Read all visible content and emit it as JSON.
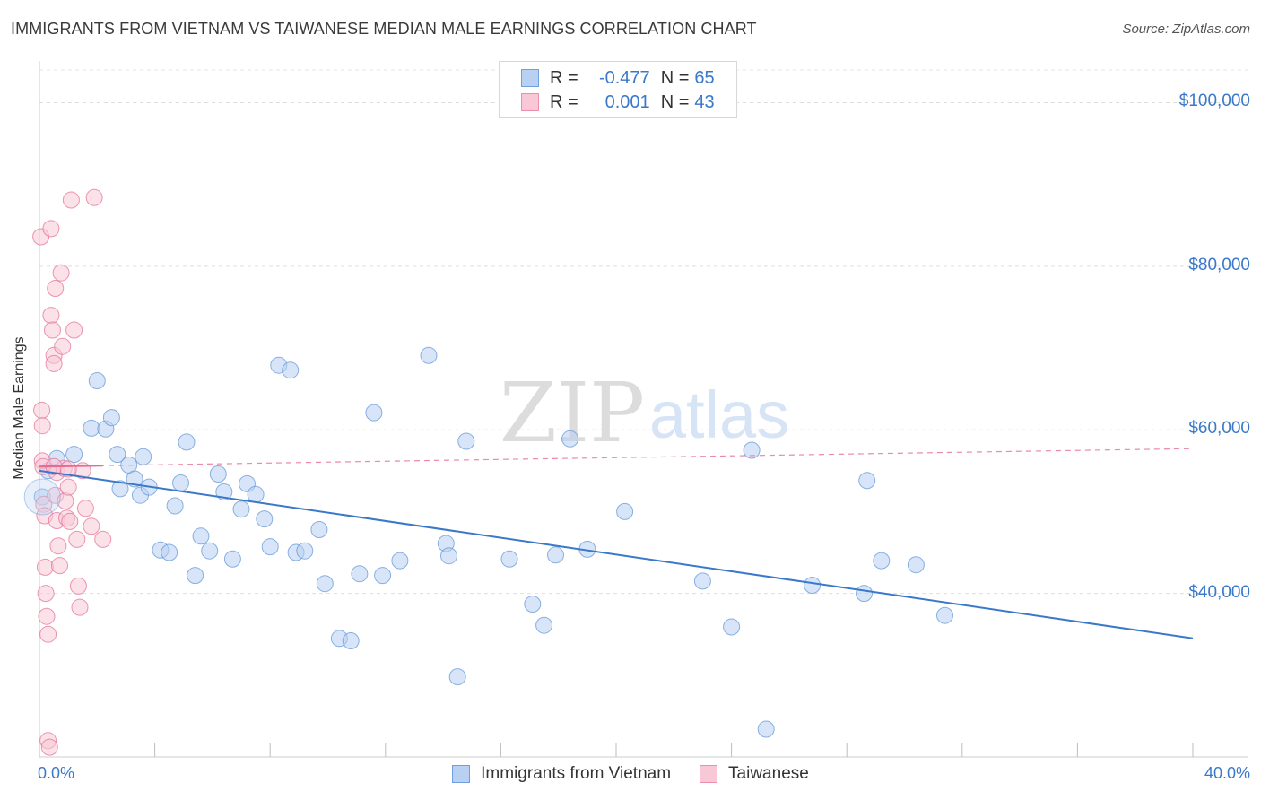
{
  "title": "IMMIGRANTS FROM VIETNAM VS TAIWANESE MEDIAN MALE EARNINGS CORRELATION CHART",
  "source": "Source: ZipAtlas.com",
  "watermark": {
    "zip": "ZIP",
    "atlas": "atlas"
  },
  "legend": {
    "rows": [
      {
        "r_label": "R =",
        "r_value": "-0.477",
        "n_label": "N =",
        "n_value": "65",
        "fill": "#b8d0f2",
        "stroke": "#6f9fdc"
      },
      {
        "r_label": "R =",
        "r_value": "0.001",
        "n_label": "N =",
        "n_value": "43",
        "fill": "#f8c8d6",
        "stroke": "#ec8fae"
      }
    ]
  },
  "bottom_legend": [
    {
      "label": "Immigrants from Vietnam",
      "fill": "#b8d0f2",
      "stroke": "#6f9fdc"
    },
    {
      "label": "Taiwanese",
      "fill": "#f8c8d6",
      "stroke": "#ec8fae"
    }
  ],
  "chart_data": {
    "type": "scatter",
    "title": "IMMIGRANTS FROM VIETNAM VS TAIWANESE MEDIAN MALE EARNINGS CORRELATION CHART",
    "xlabel": "",
    "ylabel": "Median Male Earnings",
    "xlim": [
      0,
      40
    ],
    "ylim": [
      20000,
      104000
    ],
    "x_tick_labels": [
      "0.0%",
      "40.0%"
    ],
    "y_ticks": [
      {
        "value": 40000,
        "label": "$40,000"
      },
      {
        "value": 60000,
        "label": "$60,000"
      },
      {
        "value": 80000,
        "label": "$80,000"
      },
      {
        "value": 100000,
        "label": "$100,000"
      }
    ],
    "grid": true,
    "series": [
      {
        "name": "Immigrants from Vietnam",
        "color": "#5b93d6",
        "fill": "#b8d0f2",
        "trend": {
          "x": [
            0,
            40
          ],
          "y": [
            55000,
            34500
          ],
          "style": "solid"
        },
        "points": [
          [
            0.1,
            51800
          ],
          [
            0.3,
            55000
          ],
          [
            0.6,
            56500
          ],
          [
            1.2,
            57000
          ],
          [
            1.8,
            60200
          ],
          [
            2.0,
            66000
          ],
          [
            2.3,
            60100
          ],
          [
            2.5,
            61500
          ],
          [
            2.7,
            57000
          ],
          [
            2.8,
            52800
          ],
          [
            3.1,
            55700
          ],
          [
            3.3,
            54000
          ],
          [
            3.5,
            52000
          ],
          [
            3.6,
            56700
          ],
          [
            3.8,
            53000
          ],
          [
            4.2,
            45300
          ],
          [
            4.5,
            45000
          ],
          [
            4.7,
            50700
          ],
          [
            4.9,
            53500
          ],
          [
            5.1,
            58500
          ],
          [
            5.4,
            42200
          ],
          [
            5.6,
            47000
          ],
          [
            5.9,
            45200
          ],
          [
            6.2,
            54600
          ],
          [
            6.4,
            52400
          ],
          [
            6.7,
            44200
          ],
          [
            7.0,
            50300
          ],
          [
            7.2,
            53400
          ],
          [
            7.5,
            52100
          ],
          [
            7.8,
            49100
          ],
          [
            8.0,
            45700
          ],
          [
            8.3,
            67900
          ],
          [
            8.7,
            67300
          ],
          [
            8.9,
            45000
          ],
          [
            9.2,
            45200
          ],
          [
            9.7,
            47800
          ],
          [
            9.9,
            41200
          ],
          [
            10.4,
            34500
          ],
          [
            10.8,
            34200
          ],
          [
            11.1,
            42400
          ],
          [
            11.6,
            62100
          ],
          [
            11.9,
            42200
          ],
          [
            12.5,
            44000
          ],
          [
            13.5,
            69100
          ],
          [
            14.1,
            46100
          ],
          [
            14.2,
            44600
          ],
          [
            14.5,
            29800
          ],
          [
            14.8,
            58600
          ],
          [
            16.3,
            44200
          ],
          [
            17.1,
            38700
          ],
          [
            17.5,
            36100
          ],
          [
            17.9,
            44700
          ],
          [
            18.4,
            58900
          ],
          [
            19.0,
            45400
          ],
          [
            20.3,
            50000
          ],
          [
            23.0,
            41500
          ],
          [
            24.0,
            35900
          ],
          [
            24.7,
            57500
          ],
          [
            25.2,
            23400
          ],
          [
            26.8,
            41000
          ],
          [
            28.6,
            40000
          ],
          [
            28.7,
            53800
          ],
          [
            29.2,
            44000
          ],
          [
            30.4,
            43500
          ],
          [
            31.4,
            37300
          ]
        ]
      },
      {
        "name": "Taiwanese",
        "color": "#e56b94",
        "fill": "#f8c8d6",
        "trend": {
          "x": [
            0,
            40
          ],
          "y": [
            55500,
            57700
          ],
          "style": "dashed",
          "solid_until": 2.2
        },
        "points": [
          [
            0.05,
            83600
          ],
          [
            0.08,
            62400
          ],
          [
            0.1,
            60500
          ],
          [
            0.1,
            56200
          ],
          [
            0.12,
            55500
          ],
          [
            0.15,
            50900
          ],
          [
            0.18,
            49500
          ],
          [
            0.2,
            43200
          ],
          [
            0.22,
            40000
          ],
          [
            0.25,
            37200
          ],
          [
            0.3,
            35000
          ],
          [
            0.3,
            22000
          ],
          [
            0.35,
            21200
          ],
          [
            0.4,
            84600
          ],
          [
            0.4,
            74000
          ],
          [
            0.45,
            72200
          ],
          [
            0.5,
            69100
          ],
          [
            0.5,
            68100
          ],
          [
            0.55,
            77300
          ],
          [
            0.55,
            52000
          ],
          [
            0.6,
            54800
          ],
          [
            0.6,
            48900
          ],
          [
            0.65,
            45800
          ],
          [
            0.7,
            43400
          ],
          [
            0.75,
            79200
          ],
          [
            0.8,
            70200
          ],
          [
            0.85,
            55300
          ],
          [
            0.9,
            51300
          ],
          [
            0.95,
            49200
          ],
          [
            1.0,
            53000
          ],
          [
            1.05,
            48800
          ],
          [
            1.1,
            88100
          ],
          [
            1.2,
            72200
          ],
          [
            1.3,
            46600
          ],
          [
            1.35,
            40900
          ],
          [
            1.4,
            38300
          ],
          [
            1.5,
            55000
          ],
          [
            1.6,
            50400
          ],
          [
            1.8,
            48200
          ],
          [
            1.9,
            88400
          ],
          [
            2.2,
            46600
          ],
          [
            0.5,
            55500
          ],
          [
            1.0,
            55200
          ]
        ]
      }
    ]
  }
}
